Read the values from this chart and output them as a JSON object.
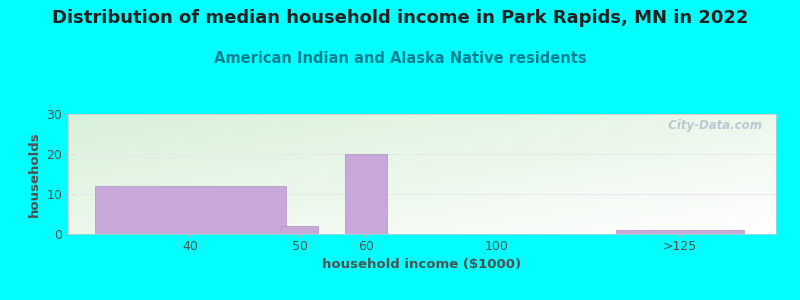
{
  "title": "Distribution of median household income in Park Rapids, MN in 2022",
  "subtitle": "American Indian and Alaska Native residents",
  "xlabel": "household income ($1000)",
  "ylabel": "households",
  "bar_lefts": [
    10,
    45,
    57,
    85,
    108
  ],
  "bar_rights": [
    46,
    52,
    65,
    86,
    132
  ],
  "bar_heights": [
    12,
    2,
    20,
    0,
    1
  ],
  "bar_color": "#c8a8d8",
  "bar_edgecolor": "#b090c0",
  "xtick_labels": [
    "40",
    "50",
    "60",
    "100",
    ">125"
  ],
  "xtick_positions": [
    28,
    48.5,
    61,
    85.5,
    120
  ],
  "ytick_labels": [
    "0",
    "10",
    "20",
    "30"
  ],
  "ytick_positions": [
    0,
    10,
    20,
    30
  ],
  "ylim": [
    0,
    30
  ],
  "xlim": [
    5,
    138
  ],
  "bg_color": "#00ffff",
  "plot_bg_topleft": "#d8f0d8",
  "plot_bg_bottomright": "#ffffff",
  "watermark": "  City-Data.com",
  "title_fontsize": 13,
  "subtitle_fontsize": 10.5,
  "label_fontsize": 9.5,
  "tick_fontsize": 9,
  "title_color": "#202020",
  "subtitle_color": "#008090",
  "label_color": "#505050",
  "tick_color": "#505050",
  "gridline_color": "#e8e8e8"
}
